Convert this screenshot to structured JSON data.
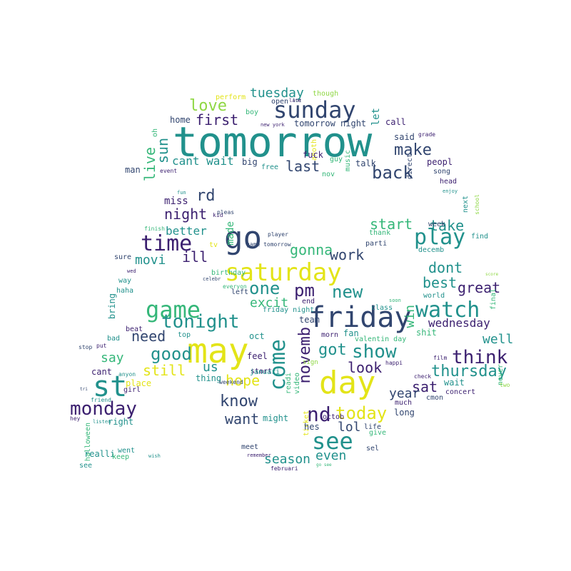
{
  "palette": {
    "purple": "#3b1f6f",
    "indigo": "#31456f",
    "blue": "#2c6f8e",
    "teal": "#21918c",
    "green": "#35b779",
    "lime": "#8fd744",
    "yellow": "#e3e418"
  },
  "words": [
    "tomorrow",
    "go",
    "may",
    "saturday",
    "friday",
    "day",
    "st",
    "sunday",
    "watch",
    "time",
    "see",
    "today",
    "play",
    "monday",
    "back",
    "make",
    "game",
    "come",
    "nd",
    "tonight",
    "good",
    "know",
    "pm",
    "new",
    "show",
    "think",
    "thursday",
    "love",
    "rd",
    "first",
    "tuesday",
    "last",
    "cant wait",
    "live",
    "sun",
    "one",
    "wednesday",
    "night",
    "got",
    "novemb",
    "look",
    "hope",
    "want",
    "still",
    "say",
    "best",
    "great",
    "take",
    "start",
    "dont",
    "well",
    "sat",
    "win",
    "need",
    "movi",
    "gonna",
    "excit",
    "ill",
    "work",
    "better",
    "miss",
    "lol",
    "season",
    "even",
    "year",
    "us",
    "let",
    "call",
    "said",
    "peopl",
    "song",
    "head",
    "home",
    "oh",
    "man",
    "event",
    "big",
    "free",
    "guy",
    "talk",
    "music",
    "anoth",
    "fuck",
    "nov",
    "direct",
    "grade",
    "perform",
    "boy",
    "open",
    "though",
    "late",
    "lot",
    "new york",
    "tomorrow night",
    "week",
    "next",
    "school",
    "find",
    "enjoy",
    "decemb",
    "parti",
    "thank",
    "made",
    "kid",
    "pleas",
    "fun",
    "tv",
    "finish",
    "sure",
    "wed",
    "way",
    "haha",
    "birthday",
    "player",
    "game tomorrow",
    "celebr",
    "everyon",
    "left",
    "end",
    "friday night",
    "class",
    "soon",
    "world",
    "score",
    "final",
    "bring",
    "team",
    "fan",
    "valentin day",
    "shit",
    "morn",
    "oct",
    "beat",
    "top",
    "bad",
    "stop",
    "put",
    "feel",
    "start",
    "readi",
    "cant",
    "januari",
    "video",
    "sign",
    "happi",
    "thing",
    "place",
    "girl",
    "anyon",
    "check",
    "wait",
    "concert",
    "cmon",
    "film",
    "never",
    "two",
    "tri",
    "friend",
    "weekend",
    "might",
    "octob",
    "much",
    "long",
    "hey",
    "listen",
    "right",
    "halloween",
    "ticket",
    "hes",
    "life",
    "give",
    "meet",
    "sel",
    "went",
    "realli",
    "keep",
    "wish",
    "remember",
    "februari",
    "see",
    "go see"
  ]
}
